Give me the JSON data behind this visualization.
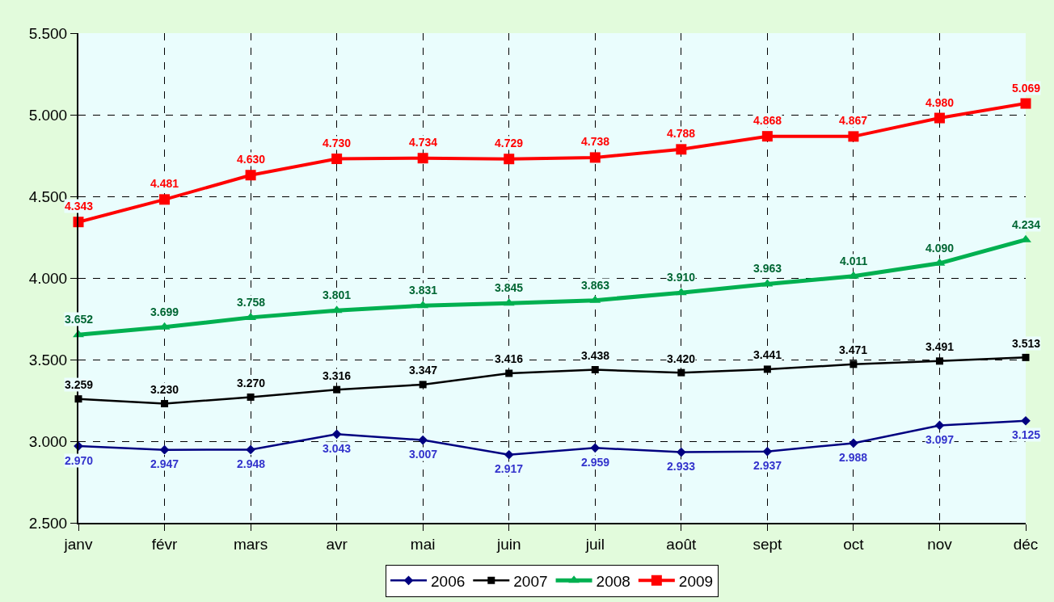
{
  "chart_data": {
    "type": "line",
    "categories": [
      "janv",
      "févr",
      "mars",
      "avr",
      "mai",
      "juin",
      "juil",
      "août",
      "sept",
      "oct",
      "nov",
      "déc"
    ],
    "ylim": [
      2500,
      5500
    ],
    "yticks": [
      {
        "value": 2500,
        "label": "2.500"
      },
      {
        "value": 3000,
        "label": "3.000"
      },
      {
        "value": 3500,
        "label": "3.500"
      },
      {
        "value": 4000,
        "label": "4.000"
      },
      {
        "value": 4500,
        "label": "4.500"
      },
      {
        "value": 5000,
        "label": "5.000"
      },
      {
        "value": 5500,
        "label": "5.500"
      }
    ],
    "grid": true,
    "legend": "bottom",
    "line_style": "solid",
    "series": [
      {
        "name": "2006",
        "color": "#000080",
        "marker": "diamond",
        "values": [
          2970,
          2947,
          2948,
          3043,
          3007,
          2917,
          2959,
          2933,
          2937,
          2988,
          3097,
          3125
        ],
        "value_labels": [
          "2.970",
          "2.947",
          "2.948",
          "3.043",
          "3.007",
          "2.917",
          "2.959",
          "2.933",
          "2.937",
          "2.988",
          "3.097",
          "3.125"
        ]
      },
      {
        "name": "2007",
        "color": "#000000",
        "marker": "square",
        "values": [
          3259,
          3230,
          3270,
          3316,
          3347,
          3416,
          3438,
          3420,
          3441,
          3471,
          3491,
          3513
        ],
        "value_labels": [
          "3.259",
          "3.230",
          "3.270",
          "3.316",
          "3.347",
          "3.416",
          "3.438",
          "3.420",
          "3.441",
          "3.471",
          "3.491",
          "3.513"
        ]
      },
      {
        "name": "2008",
        "color": "#00b050",
        "marker": "triangle",
        "values": [
          3652,
          3699,
          3758,
          3801,
          3831,
          3845,
          3863,
          3910,
          3963,
          4011,
          4090,
          4234
        ],
        "value_labels": [
          "3.652",
          "3.699",
          "3.758",
          "3.801",
          "3.831",
          "3.845",
          "3.863",
          "3.910",
          "3.963",
          "4.011",
          "4.090",
          "4.234"
        ]
      },
      {
        "name": "2009",
        "color": "#ff0000",
        "marker": "square",
        "values": [
          4343,
          4481,
          4630,
          4730,
          4734,
          4729,
          4738,
          4788,
          4868,
          4867,
          4980,
          5069
        ],
        "value_labels": [
          "4.343",
          "4.481",
          "4.630",
          "4.730",
          "4.734",
          "4.729",
          "4.738",
          "4.788",
          "4.868",
          "4.867",
          "4.980",
          "5.069"
        ]
      }
    ]
  }
}
